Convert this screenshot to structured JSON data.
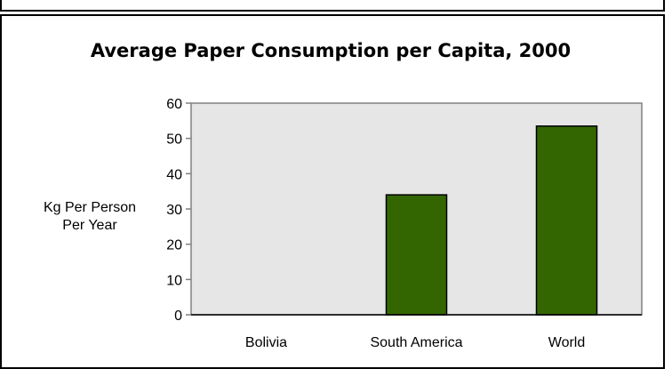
{
  "chart_data": {
    "type": "bar",
    "title": "Average Paper Consumption per Capita, 2000",
    "ylabel_lines": [
      "Kg Per Person",
      "Per Year"
    ],
    "xlabel": "",
    "categories": [
      "Bolivia",
      "South America",
      "World"
    ],
    "values": [
      0,
      34,
      53.5
    ],
    "ylim": [
      0,
      60
    ],
    "yticks": [
      0,
      10,
      20,
      30,
      40,
      50,
      60
    ],
    "grid": false,
    "legend": "none",
    "colors": {
      "bar": "#336600",
      "plot_bg": "#e6e6e6",
      "plot_border": "#808080"
    }
  }
}
